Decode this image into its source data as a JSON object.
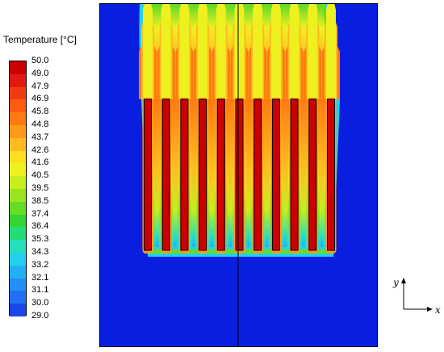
{
  "legend": {
    "title": "Temperature [°C]",
    "levels": [
      "50.0",
      "49.0",
      "47.9",
      "46.9",
      "45.8",
      "44.8",
      "43.7",
      "42.6",
      "41.6",
      "40.5",
      "39.5",
      "38.5",
      "37.4",
      "36.4",
      "35.3",
      "34.3",
      "33.2",
      "32.1",
      "31.1",
      "30.0",
      "29.0"
    ],
    "colors": [
      "#cc0000",
      "#e01a10",
      "#f03a10",
      "#ff5a10",
      "#ff7a10",
      "#ff9a18",
      "#ffbb20",
      "#ffdd20",
      "#eef020",
      "#c8ee20",
      "#99e620",
      "#66dd22",
      "#33d433",
      "#22dd77",
      "#22e0bb",
      "#22d0ee",
      "#22b0f5",
      "#2290f5",
      "#2270f0",
      "#1a45e8",
      "#0a1ee0"
    ]
  },
  "chart_data": {
    "type": "heatmap",
    "title": "",
    "colorbar_label": "Temperature [°C]",
    "value_range": [
      29.0,
      50.0
    ],
    "fins": 11,
    "fin_temperature": 50.0,
    "ambient_temperature": 29.0,
    "axes_labels": {
      "x": "x",
      "y": "y"
    }
  },
  "axes_indicator": {
    "x_label": "x",
    "y_label": "y"
  }
}
